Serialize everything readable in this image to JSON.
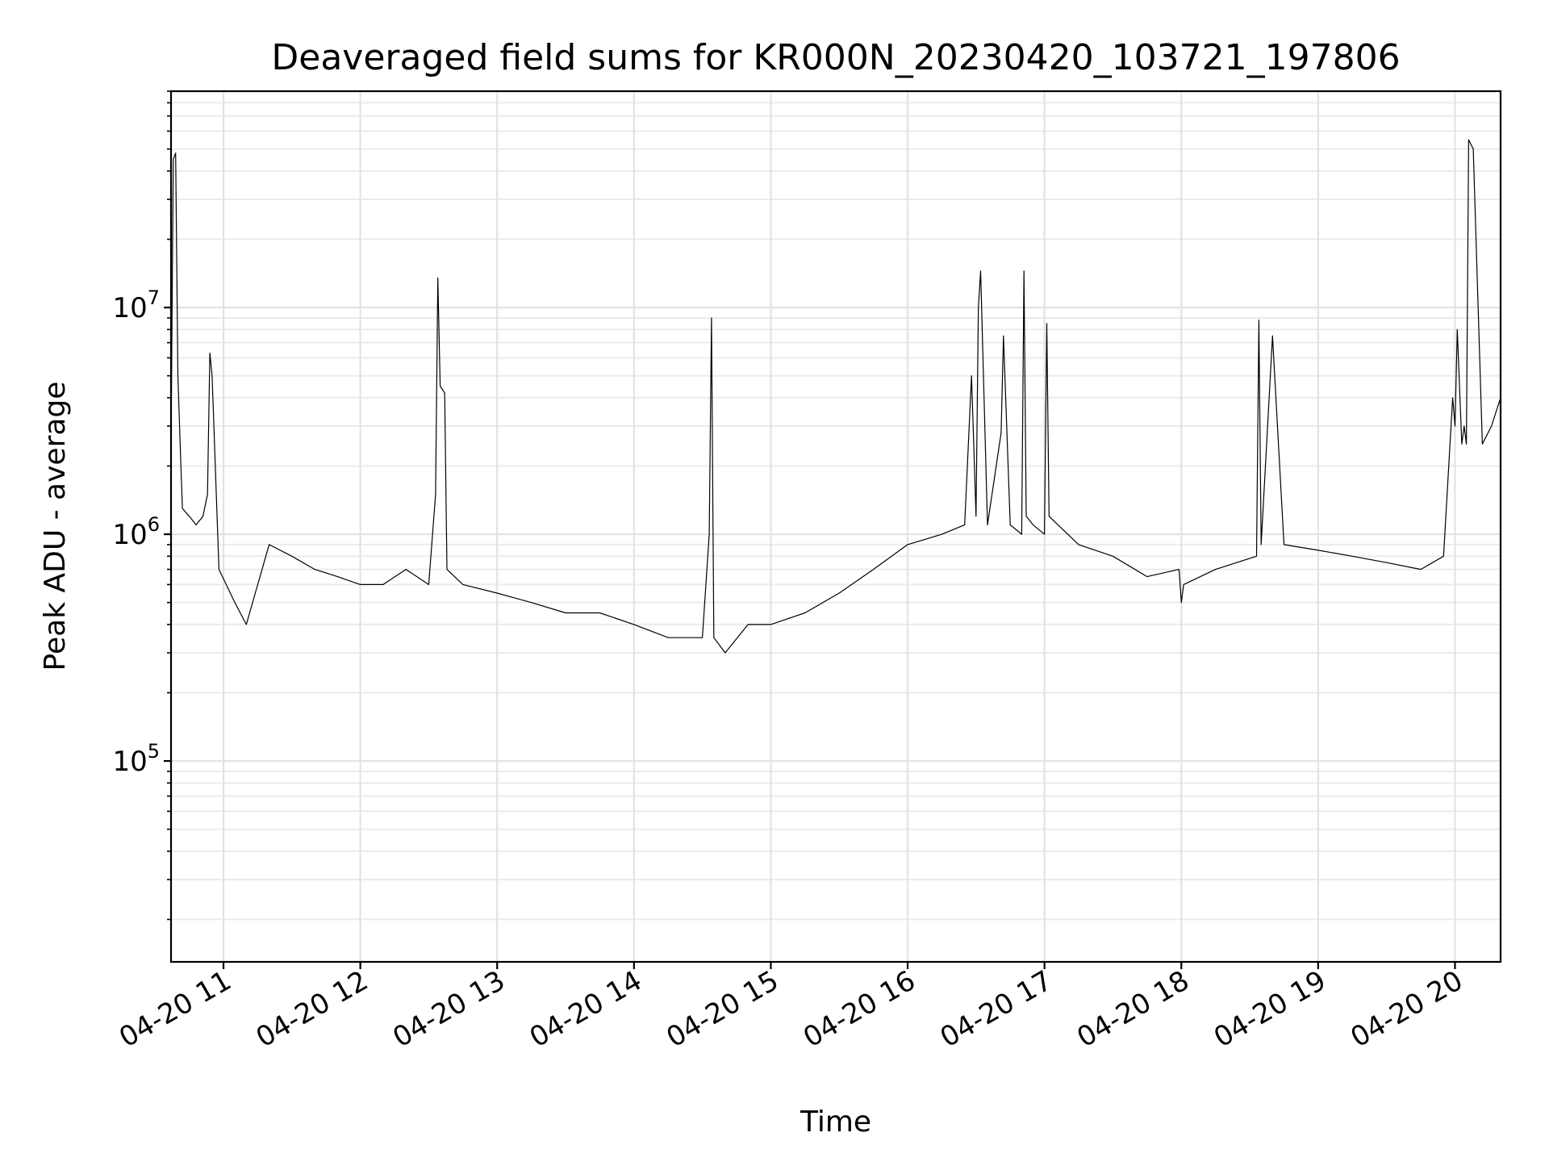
{
  "chart_data": {
    "type": "line",
    "title": "Deaveraged field sums for KR000N_20230420_103721_197806",
    "xlabel": "Time",
    "ylabel": "Peak ADU - average",
    "y_scale": "log",
    "ylim": [
      13000,
      90000000
    ],
    "xlim": [
      "2023-04-20 10:37",
      "2023-04-20 20:20"
    ],
    "grid": true,
    "line_color": "#000000",
    "x_ticks": [
      {
        "value": "2023-04-20 11:00",
        "label": "04-20 11"
      },
      {
        "value": "2023-04-20 12:00",
        "label": "04-20 12"
      },
      {
        "value": "2023-04-20 13:00",
        "label": "04-20 13"
      },
      {
        "value": "2023-04-20 14:00",
        "label": "04-20 14"
      },
      {
        "value": "2023-04-20 15:00",
        "label": "04-20 15"
      },
      {
        "value": "2023-04-20 16:00",
        "label": "04-20 16"
      },
      {
        "value": "2023-04-20 17:00",
        "label": "04-20 17"
      },
      {
        "value": "2023-04-20 18:00",
        "label": "04-20 18"
      },
      {
        "value": "2023-04-20 19:00",
        "label": "04-20 19"
      },
      {
        "value": "2023-04-20 20:00",
        "label": "04-20 20"
      }
    ],
    "y_ticks": [
      {
        "value": 100000,
        "base": "10",
        "exp": "5"
      },
      {
        "value": 1000000,
        "base": "10",
        "exp": "6"
      },
      {
        "value": 10000000,
        "base": "10",
        "exp": "7"
      }
    ],
    "series": [
      {
        "x": [
          "2023-04-20 10:37",
          "2023-04-20 10:38",
          "2023-04-20 10:39",
          "2023-04-20 10:40",
          "2023-04-20 10:41",
          "2023-04-20 10:42",
          "2023-04-20 10:45",
          "2023-04-20 10:48",
          "2023-04-20 10:51",
          "2023-04-20 10:53",
          "2023-04-20 10:54",
          "2023-04-20 10:55",
          "2023-04-20 10:58",
          "2023-04-20 11:05",
          "2023-04-20 11:10",
          "2023-04-20 11:20",
          "2023-04-20 11:30",
          "2023-04-20 11:40",
          "2023-04-20 11:50",
          "2023-04-20 12:00",
          "2023-04-20 12:10",
          "2023-04-20 12:20",
          "2023-04-20 12:30",
          "2023-04-20 12:33",
          "2023-04-20 12:34",
          "2023-04-20 12:35",
          "2023-04-20 12:37",
          "2023-04-20 12:38",
          "2023-04-20 12:45",
          "2023-04-20 13:00",
          "2023-04-20 13:15",
          "2023-04-20 13:30",
          "2023-04-20 13:45",
          "2023-04-20 14:00",
          "2023-04-20 14:15",
          "2023-04-20 14:30",
          "2023-04-20 14:33",
          "2023-04-20 14:34",
          "2023-04-20 14:35",
          "2023-04-20 14:40",
          "2023-04-20 14:50",
          "2023-04-20 15:00",
          "2023-04-20 15:15",
          "2023-04-20 15:30",
          "2023-04-20 15:45",
          "2023-04-20 16:00",
          "2023-04-20 16:15",
          "2023-04-20 16:25",
          "2023-04-20 16:28",
          "2023-04-20 16:30",
          "2023-04-20 16:31",
          "2023-04-20 16:32",
          "2023-04-20 16:35",
          "2023-04-20 16:41",
          "2023-04-20 16:42",
          "2023-04-20 16:45",
          "2023-04-20 16:50",
          "2023-04-20 16:51",
          "2023-04-20 16:52",
          "2023-04-20 16:55",
          "2023-04-20 17:00",
          "2023-04-20 17:01",
          "2023-04-20 17:02",
          "2023-04-20 17:15",
          "2023-04-20 17:30",
          "2023-04-20 17:45",
          "2023-04-20 17:59",
          "2023-04-20 18:00",
          "2023-04-20 18:01",
          "2023-04-20 18:15",
          "2023-04-20 18:33",
          "2023-04-20 18:34",
          "2023-04-20 18:35",
          "2023-04-20 18:40",
          "2023-04-20 18:45",
          "2023-04-20 19:00",
          "2023-04-20 19:15",
          "2023-04-20 19:30",
          "2023-04-20 19:45",
          "2023-04-20 19:55",
          "2023-04-20 19:59",
          "2023-04-20 20:00",
          "2023-04-20 20:01",
          "2023-04-20 20:03",
          "2023-04-20 20:04",
          "2023-04-20 20:05",
          "2023-04-20 20:06",
          "2023-04-20 20:08",
          "2023-04-20 20:12",
          "2023-04-20 20:16",
          "2023-04-20 20:20"
        ],
        "y": [
          2500000,
          45000000,
          48000000,
          5000000,
          2500000,
          1300000,
          1200000,
          1100000,
          1200000,
          1500000,
          6300000,
          5000000,
          700000,
          500000,
          400000,
          900000,
          800000,
          700000,
          650000,
          600000,
          600000,
          700000,
          600000,
          1500000,
          13500000,
          4500000,
          4200000,
          700000,
          600000,
          550000,
          500000,
          450000,
          450000,
          400000,
          350000,
          350000,
          1000000,
          9000000,
          350000,
          300000,
          400000,
          400000,
          450000,
          550000,
          700000,
          900000,
          1000000,
          1100000,
          5000000,
          1200000,
          10000000,
          14500000,
          1100000,
          2800000,
          7500000,
          1100000,
          1000000,
          14500000,
          1200000,
          1100000,
          1000000,
          8500000,
          1200000,
          900000,
          800000,
          650000,
          700000,
          500000,
          600000,
          700000,
          800000,
          8800000,
          900000,
          7500000,
          900000,
          850000,
          800000,
          750000,
          700000,
          800000,
          4000000,
          3000000,
          8000000,
          2500000,
          3000000,
          2500000,
          55000000,
          50000000,
          2500000,
          3000000,
          4000000
        ]
      }
    ]
  }
}
